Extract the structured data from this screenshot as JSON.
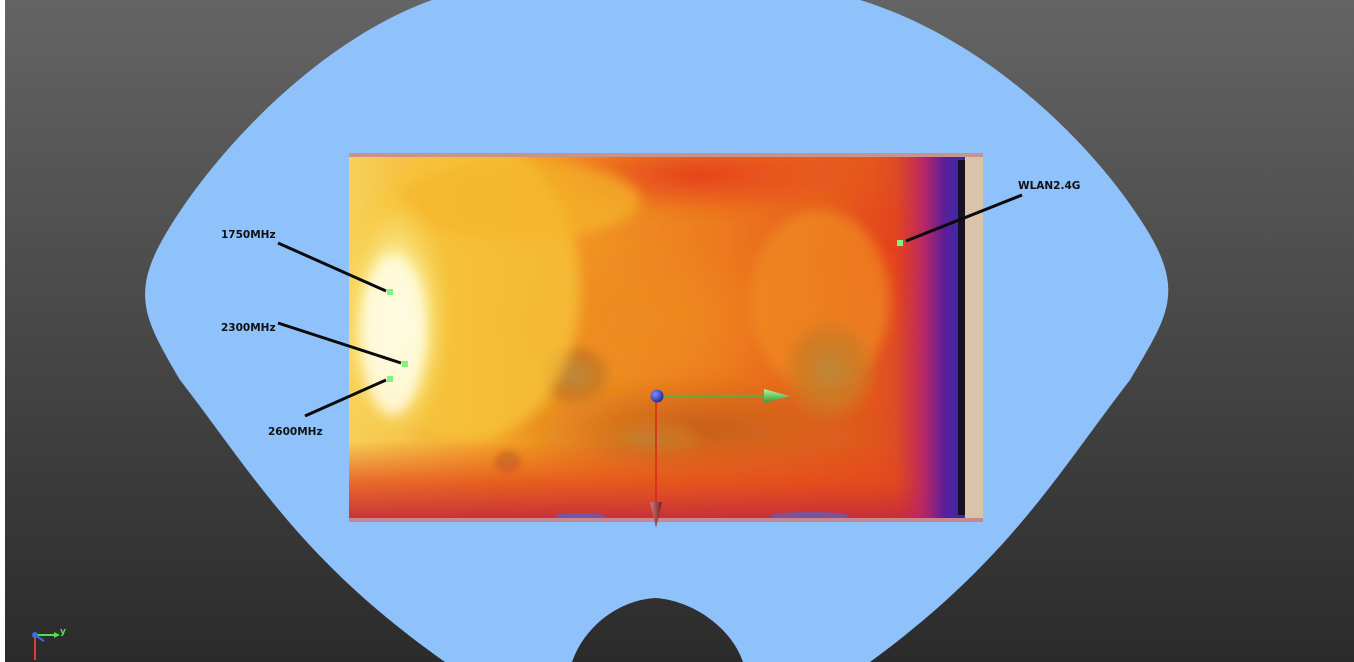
{
  "viewport": {
    "background_top": "#646464",
    "background_bottom": "#2b2b2b",
    "phantom_color": "#8fc1fb",
    "left_strip_color": "#ffffff"
  },
  "heatmap": {
    "colormap": [
      "#fffbd0",
      "#f7e27a",
      "#f3b52a",
      "#ef7f1d",
      "#e64a1c",
      "#c42548",
      "#7a1a88",
      "#2f2fae"
    ]
  },
  "probes": [
    {
      "id": "1750",
      "label": "1750MHz",
      "marker_color": "#7ff57f"
    },
    {
      "id": "2300",
      "label": "2300MHz",
      "marker_color": "#7ff57f"
    },
    {
      "id": "2600",
      "label": "2600MHz",
      "marker_color": "#7ff57f"
    },
    {
      "id": "wlan",
      "label": "WLAN2.4G",
      "marker_color": "#7ff57f"
    }
  ],
  "gizmo": {
    "x_axis_color": "#d8261e",
    "y_axis_color": "#38c23e",
    "origin_color": "#3a49c8"
  },
  "corner_axes": {
    "y_label": "y",
    "y_color": "#4fe04f",
    "x_color": "#e03a3a",
    "z_color": "#3a6fe0"
  }
}
